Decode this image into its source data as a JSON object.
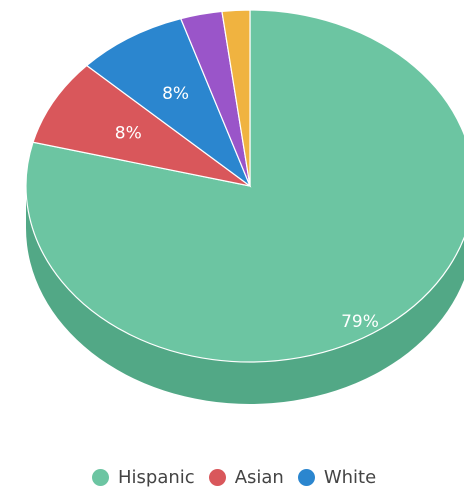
{
  "chart_data": {
    "type": "pie",
    "style": "3d",
    "slices": [
      {
        "name": "Hispanic",
        "value": 79,
        "label": "79%",
        "color": "#6cc5a2",
        "side_color": "#52a886"
      },
      {
        "name": "Asian",
        "value": 8,
        "label": "8%",
        "color": "#d9575b",
        "side_color": "#b84346"
      },
      {
        "name": "White",
        "value": 8,
        "label": "8%",
        "color": "#2b86cf",
        "side_color": "#1f6aa6"
      },
      {
        "name": "",
        "value": 3,
        "label": "",
        "color": "#9a55c9",
        "side_color": "#7b3fa6"
      },
      {
        "name": "",
        "value": 2,
        "label": "",
        "color": "#f0b340",
        "side_color": "#c98f27"
      }
    ],
    "legend": [
      "Hispanic",
      "Asian",
      "White"
    ],
    "legend_position": "bottom"
  }
}
